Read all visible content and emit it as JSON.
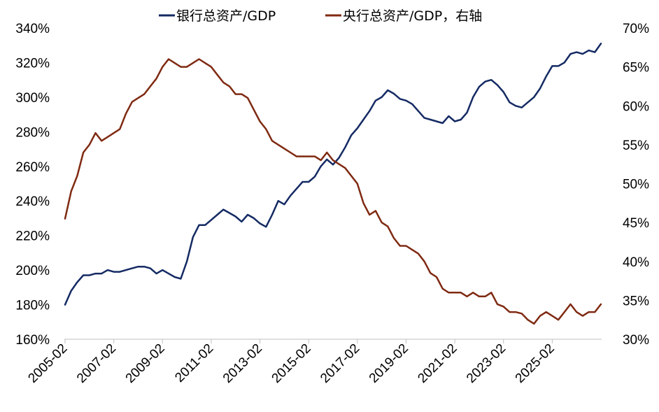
{
  "chart_data": {
    "type": "line",
    "series": [
      {
        "name": "银行总资产/GDP",
        "axis": "left",
        "color": "#142a63",
        "points": [
          [
            "2005-02",
            180
          ],
          [
            "2005-05",
            188
          ],
          [
            "2005-08",
            193
          ],
          [
            "2005-11",
            197
          ],
          [
            "2006-02",
            197
          ],
          [
            "2006-05",
            198
          ],
          [
            "2006-08",
            198
          ],
          [
            "2006-11",
            200
          ],
          [
            "2007-02",
            199
          ],
          [
            "2007-05",
            199
          ],
          [
            "2007-08",
            200
          ],
          [
            "2007-11",
            201
          ],
          [
            "2008-02",
            202
          ],
          [
            "2008-05",
            202
          ],
          [
            "2008-08",
            201
          ],
          [
            "2008-11",
            198
          ],
          [
            "2009-02",
            200
          ],
          [
            "2009-05",
            198
          ],
          [
            "2009-08",
            196
          ],
          [
            "2009-11",
            195
          ],
          [
            "2010-02",
            205
          ],
          [
            "2010-05",
            219
          ],
          [
            "2010-08",
            226
          ],
          [
            "2010-11",
            226
          ],
          [
            "2011-02",
            229
          ],
          [
            "2011-05",
            232
          ],
          [
            "2011-08",
            235
          ],
          [
            "2011-11",
            233
          ],
          [
            "2012-02",
            231
          ],
          [
            "2012-05",
            228
          ],
          [
            "2012-08",
            232
          ],
          [
            "2012-11",
            230
          ],
          [
            "2013-02",
            227
          ],
          [
            "2013-05",
            225
          ],
          [
            "2013-08",
            232
          ],
          [
            "2013-11",
            240
          ],
          [
            "2014-02",
            238
          ],
          [
            "2014-05",
            243
          ],
          [
            "2014-08",
            247
          ],
          [
            "2014-11",
            251
          ],
          [
            "2015-02",
            251
          ],
          [
            "2015-05",
            254
          ],
          [
            "2015-08",
            260
          ],
          [
            "2015-11",
            264
          ],
          [
            "2016-02",
            261
          ],
          [
            "2016-05",
            265
          ],
          [
            "2016-08",
            271
          ],
          [
            "2016-11",
            278
          ],
          [
            "2017-02",
            282
          ],
          [
            "2017-05",
            287
          ],
          [
            "2017-08",
            292
          ],
          [
            "2017-11",
            298
          ],
          [
            "2018-02",
            300
          ],
          [
            "2018-05",
            304
          ],
          [
            "2018-08",
            302
          ],
          [
            "2018-11",
            299
          ],
          [
            "2019-02",
            298
          ],
          [
            "2019-05",
            296
          ],
          [
            "2019-08",
            292
          ],
          [
            "2019-11",
            288
          ],
          [
            "2020-02",
            287
          ],
          [
            "2020-05",
            286
          ],
          [
            "2020-08",
            285
          ],
          [
            "2020-11",
            289
          ],
          [
            "2021-02",
            286
          ],
          [
            "2021-05",
            287
          ],
          [
            "2021-08",
            291
          ],
          [
            "2021-11",
            300
          ],
          [
            "2022-02",
            306
          ],
          [
            "2022-05",
            309
          ],
          [
            "2022-08",
            310
          ],
          [
            "2022-11",
            307
          ],
          [
            "2023-02",
            303
          ],
          [
            "2023-05",
            297
          ],
          [
            "2023-08",
            295
          ],
          [
            "2023-11",
            294
          ],
          [
            "2024-02",
            297
          ],
          [
            "2024-05",
            300
          ],
          [
            "2024-08",
            305
          ],
          [
            "2024-11",
            312
          ],
          [
            "2025-02",
            318
          ],
          [
            "2025-05",
            318
          ],
          [
            "2025-08",
            320
          ],
          [
            "2025-11",
            325
          ],
          [
            "2026-02",
            326
          ],
          [
            "2026-05",
            325
          ],
          [
            "2026-08",
            327
          ],
          [
            "2026-11",
            326
          ],
          [
            "2027-02",
            331
          ]
        ]
      },
      {
        "name": "央行总资产/GDP，右轴",
        "axis": "right",
        "color": "#7f2a12",
        "points": [
          [
            "2005-02",
            45.5
          ],
          [
            "2005-05",
            49
          ],
          [
            "2005-08",
            51
          ],
          [
            "2005-11",
            54
          ],
          [
            "2006-02",
            55
          ],
          [
            "2006-05",
            56.5
          ],
          [
            "2006-08",
            55.5
          ],
          [
            "2006-11",
            56
          ],
          [
            "2007-02",
            56.5
          ],
          [
            "2007-05",
            57
          ],
          [
            "2007-08",
            59
          ],
          [
            "2007-11",
            60.5
          ],
          [
            "2008-02",
            61
          ],
          [
            "2008-05",
            61.5
          ],
          [
            "2008-08",
            62.5
          ],
          [
            "2008-11",
            63.5
          ],
          [
            "2009-02",
            65
          ],
          [
            "2009-05",
            66
          ],
          [
            "2009-08",
            65.5
          ],
          [
            "2009-11",
            65
          ],
          [
            "2010-02",
            65
          ],
          [
            "2010-05",
            65.5
          ],
          [
            "2010-08",
            66
          ],
          [
            "2010-11",
            65.5
          ],
          [
            "2011-02",
            65
          ],
          [
            "2011-05",
            64
          ],
          [
            "2011-08",
            63
          ],
          [
            "2011-11",
            62.5
          ],
          [
            "2012-02",
            61.5
          ],
          [
            "2012-05",
            61.5
          ],
          [
            "2012-08",
            61
          ],
          [
            "2012-11",
            59.5
          ],
          [
            "2013-02",
            58
          ],
          [
            "2013-05",
            57
          ],
          [
            "2013-08",
            55.5
          ],
          [
            "2013-11",
            55
          ],
          [
            "2014-02",
            54.5
          ],
          [
            "2014-05",
            54
          ],
          [
            "2014-08",
            53.5
          ],
          [
            "2014-11",
            53.5
          ],
          [
            "2015-02",
            53.5
          ],
          [
            "2015-05",
            53.5
          ],
          [
            "2015-08",
            53
          ],
          [
            "2015-11",
            54
          ],
          [
            "2016-02",
            53
          ],
          [
            "2016-05",
            52.5
          ],
          [
            "2016-08",
            52
          ],
          [
            "2016-11",
            51
          ],
          [
            "2017-02",
            50
          ],
          [
            "2017-05",
            47.5
          ],
          [
            "2017-08",
            46
          ],
          [
            "2017-11",
            46.5
          ],
          [
            "2018-02",
            45
          ],
          [
            "2018-05",
            44.5
          ],
          [
            "2018-08",
            43
          ],
          [
            "2018-11",
            42
          ],
          [
            "2019-02",
            42
          ],
          [
            "2019-05",
            41.5
          ],
          [
            "2019-08",
            41
          ],
          [
            "2019-11",
            40
          ],
          [
            "2020-02",
            38.5
          ],
          [
            "2020-05",
            38
          ],
          [
            "2020-08",
            36.5
          ],
          [
            "2020-11",
            36
          ],
          [
            "2021-02",
            36
          ],
          [
            "2021-05",
            36
          ],
          [
            "2021-08",
            35.5
          ],
          [
            "2021-11",
            36
          ],
          [
            "2022-02",
            35.5
          ],
          [
            "2022-05",
            35.5
          ],
          [
            "2022-08",
            36
          ],
          [
            "2022-11",
            34.5
          ],
          [
            "2023-02",
            34.2
          ],
          [
            "2023-05",
            33.5
          ],
          [
            "2023-08",
            33.5
          ],
          [
            "2023-11",
            33.3
          ],
          [
            "2024-02",
            32.5
          ],
          [
            "2024-05",
            32
          ],
          [
            "2024-08",
            33
          ],
          [
            "2024-11",
            33.5
          ],
          [
            "2025-02",
            33
          ],
          [
            "2025-05",
            32.5
          ],
          [
            "2025-08",
            33.5
          ],
          [
            "2025-11",
            34.5
          ],
          [
            "2026-02",
            33.5
          ],
          [
            "2026-05",
            33
          ],
          [
            "2026-08",
            33.5
          ],
          [
            "2026-11",
            33.5
          ],
          [
            "2027-02",
            34.5
          ]
        ]
      }
    ],
    "x_ticks": [
      "2005-02",
      "2007-02",
      "2009-02",
      "2011-02",
      "2013-02",
      "2015-02",
      "2017-02",
      "2019-02",
      "2021-02",
      "2023-02",
      "2025-02"
    ],
    "y_left": {
      "min": 160,
      "max": 340,
      "step": 20,
      "format": "percent"
    },
    "y_right": {
      "min": 30,
      "max": 70,
      "step": 5,
      "format": "percent"
    },
    "legend": {
      "position": "top",
      "items": [
        "银行总资产/GDP",
        "央行总资产/GDP，右轴"
      ]
    },
    "grid": false
  }
}
